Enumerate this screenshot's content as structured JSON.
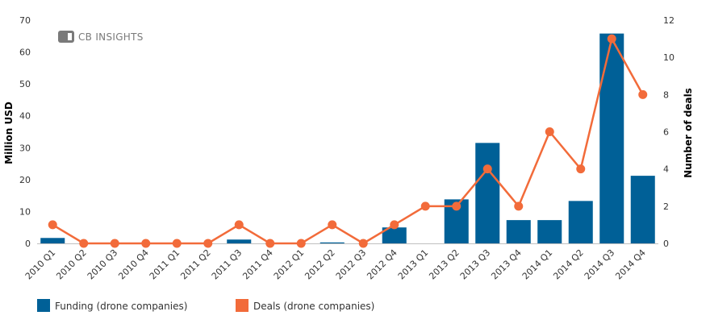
{
  "chart_data": {
    "type": "bar",
    "categories": [
      "2010 Q1",
      "2010 Q2",
      "2010 Q3",
      "2010 Q4",
      "2011 Q1",
      "2011 Q2",
      "2011 Q3",
      "2011 Q4",
      "2012 Q1",
      "2012 Q2",
      "2012 Q3",
      "2012 Q4",
      "2013 Q1",
      "2013 Q2",
      "2013 Q3",
      "2013 Q4",
      "2014 Q1",
      "2014 Q2",
      "2014 Q3",
      "2014 Q4"
    ],
    "series": [
      {
        "name": "Funding (drone companies)",
        "type": "bar",
        "axis": "left",
        "color": "#006097",
        "values": [
          1.7,
          0,
          0,
          0,
          0,
          0,
          1.2,
          0,
          0,
          0.3,
          0,
          5.0,
          0,
          13.8,
          31.5,
          7.3,
          7.3,
          13.3,
          65.8,
          21.2
        ]
      },
      {
        "name": "Deals (drone companies)",
        "type": "line",
        "axis": "right",
        "color": "#f26b3a",
        "values": [
          1,
          0,
          0,
          0,
          0,
          0,
          1,
          0,
          0,
          1,
          0,
          1,
          2,
          2,
          4,
          2,
          6,
          4,
          11,
          8
        ]
      }
    ],
    "ylabel": "Million USD",
    "y2label": "Number of deals",
    "ylim": [
      0,
      70
    ],
    "y2lim": [
      0,
      12
    ],
    "yticks": [
      0,
      10,
      20,
      30,
      40,
      50,
      60,
      70
    ],
    "y2ticks": [
      0,
      2,
      4,
      6,
      8,
      10,
      12
    ],
    "grid": false,
    "legend_position": "bottom-left"
  },
  "logo": {
    "text": "CB INSIGHTS",
    "color": "#7a7a7a"
  }
}
